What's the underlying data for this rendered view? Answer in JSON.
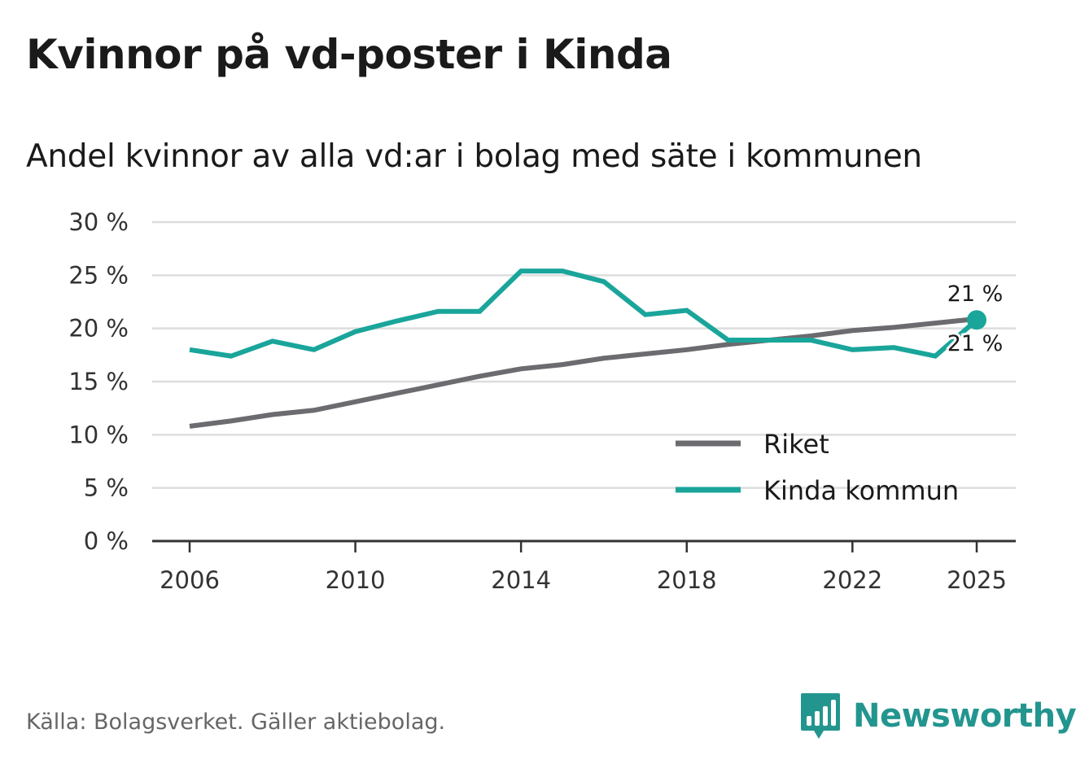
{
  "header": {
    "title": "Kvinnor på vd-poster i Kinda",
    "subtitle": "Andel kvinnor av alla vd:ar i bolag med säte i kommunen"
  },
  "footer": {
    "source": "Källa: Bolagsverket. Gäller aktiebolag.",
    "brand": "Newsworthy"
  },
  "colors": {
    "riket": "#6b6b70",
    "kinda": "#1aa59b",
    "grid": "#dddddd",
    "axis": "#333333",
    "brand": "#23958f"
  },
  "chart_data": {
    "type": "line",
    "title": "Kvinnor på vd-poster i Kinda",
    "subtitle": "Andel kvinnor av alla vd:ar i bolag med säte i kommunen",
    "xlabel": "",
    "ylabel": "",
    "x": [
      2006,
      2007,
      2008,
      2009,
      2010,
      2011,
      2012,
      2013,
      2014,
      2015,
      2016,
      2017,
      2018,
      2019,
      2020,
      2021,
      2022,
      2023,
      2024,
      2025
    ],
    "x_ticks": [
      "2006",
      "2010",
      "2014",
      "2018",
      "2022",
      "2025"
    ],
    "y_ticks": [
      "0 %",
      "5 %",
      "10 %",
      "15 %",
      "20 %",
      "25 %",
      "30 %"
    ],
    "ylim": [
      0,
      30
    ],
    "grid": true,
    "legend_position": "bottom-right",
    "series": [
      {
        "name": "Riket",
        "color": "#6b6b70",
        "values": [
          10.8,
          11.3,
          11.9,
          12.3,
          13.1,
          13.9,
          14.7,
          15.5,
          16.2,
          16.6,
          17.2,
          17.6,
          18.0,
          18.5,
          18.9,
          19.3,
          19.8,
          20.1,
          20.5,
          20.9
        ]
      },
      {
        "name": "Kinda kommun",
        "color": "#1aa59b",
        "values": [
          18.0,
          17.4,
          18.8,
          18.0,
          19.7,
          20.7,
          21.6,
          21.6,
          25.4,
          25.4,
          24.4,
          21.3,
          21.7,
          18.9,
          18.9,
          18.9,
          18.0,
          18.2,
          17.4,
          20.8
        ]
      }
    ],
    "end_labels": [
      "21 %",
      "21 %"
    ]
  }
}
